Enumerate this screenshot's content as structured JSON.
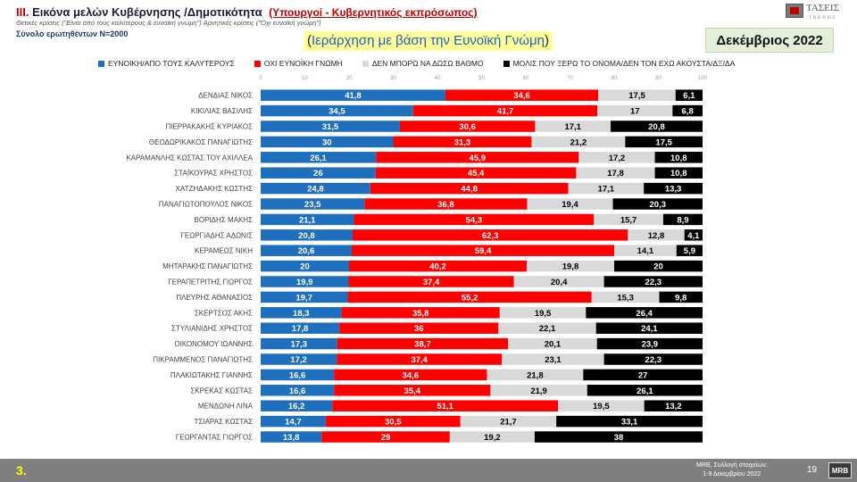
{
  "header": {
    "section_number": "III.",
    "title": "Εικόνα μελών Κυβέρνησης /Δημοτικότητα",
    "subtitle": "(Υπουργοί - Κυβερνητικός εκπρόσωπος)",
    "note": "Θετικές κρίσεις (\"Είναι από τους καλύτερους & ευνοϊκή γνώμη\") Αρνητικές κρίσεις (\"Όχι ευνοϊκή γνώμη\")",
    "sample": "Σύνολο ερωτηθέντων N=2000",
    "ranking": "Ιεράρχηση με βάση την Ευνοϊκή Γνώμη",
    "date": "Δεκέμβριος 2022",
    "logo_text": "ΤΑΣΕΙΣ",
    "logo_sub": "TRENDS"
  },
  "footer": {
    "slide_number": "3.",
    "source_line1": "MRB, Συλλογή στοιχείων:",
    "source_line2": "1-9 Δεκεμβρίου 2022",
    "page": "19",
    "logo": "MRB"
  },
  "colors": {
    "favorable": "#1f6fbf",
    "unfavorable": "#ff0000",
    "no_answer": "#d9d9d9",
    "unknown": "#000000"
  },
  "legend": [
    {
      "label": "ΕΥΝΟΙΚΗ/ΑΠΟ ΤΟΥΣ ΚΑΛΥΤΕΡΟΥΣ",
      "color": "#1f6fbf"
    },
    {
      "label": "ΟΧΙ ΕΥΝΟΙΚΗ ΓΝΩΜΗ",
      "color": "#ff0000"
    },
    {
      "label": "ΔΕΝ ΜΠΟΡΩ ΝΑ ΔΩΣΩ ΒΑΘΜΟ",
      "color": "#d9d9d9"
    },
    {
      "label": "ΜΟΛΙΣ ΠΟΥ ΞΕΡΩ ΤΟ ΟΝΟΜΑ/ΔΕΝ ΤΟΝ ΕΧΩ ΑΚΟΥΣΤΑ/ΔΞ/ΔΑ",
      "color": "#000000"
    }
  ],
  "chart_data": {
    "type": "bar",
    "orientation": "horizontal",
    "stacked": true,
    "xlim": [
      0,
      100
    ],
    "xticks": [
      0,
      10,
      20,
      30,
      40,
      50,
      60,
      70,
      80,
      90,
      100
    ],
    "categories": [
      "ΔΕΝΔΙΑΣ ΝΙΚΟΣ",
      "ΚΙΚΙΛΙΑΣ ΒΑΣΙΛΗΣ",
      "ΠΙΕΡΡΑΚΑΚΗΣ ΚΥΡΙΑΚΟΣ",
      "ΘΕΟΔΩΡΙΚΑΚΟΣ ΠΑΝΑΓΙΩΤΗΣ",
      "ΚΑΡΑΜΑΝΛΗΣ ΚΩΣΤΑΣ ΤΟΥ ΑΧΙΛΛΕΑ",
      "ΣΤΑΪΚΟΥΡΑΣ ΧΡΗΣΤΟΣ",
      "ΧΑΤΖΗΔΑΚΗΣ ΚΩΣΤΗΣ",
      "ΠΑΝΑΓΙΩΤΟΠΟΥΛΟΣ ΝΙΚΟΣ",
      "ΒΟΡΙΔΗΣ ΜΑΚΗΣ",
      "ΓΕΩΡΓΙΑΔΗΣ ΑΔΩΝΙΣ",
      "ΚΕΡΑΜΕΩΣ ΝΙΚΗ",
      "ΜΗΤΑΡΑΚΗΣ ΠΑΝΑΓΙΩΤΗΣ",
      "ΓΕΡΑΠΕΤΡΙΤΗΣ ΓΙΩΡΓΟΣ",
      "ΠΛΕΥΡΗΣ ΑΘΑΝΑΣΙΟΣ",
      "ΣΚΕΡΤΣΟΣ ΑΚΗΣ",
      "ΣΤΥΛΙΑΝΙΔΗΣ ΧΡΗΣΤΟΣ",
      "ΟΙΚΟΝΟΜΟΥ ΙΩΑΝΝΗΣ",
      "ΠΙΚΡΑΜΜΕΝΟΣ ΠΑΝΑΓΙΩΤΗΣ",
      "ΠΛΑΚΙΩΤΑΚΗΣ ΓΙΑΝΝΗΣ",
      "ΣΚΡΕΚΑΣ ΚΩΣΤΑΣ",
      "ΜΕΝΔΩΝΗ ΛΙΝΑ",
      "ΤΣΙΑΡΑΣ ΚΩΣΤΑΣ",
      "ΓΕΩΡΓΑΝΤΑΣ ΓΙΩΡΓΟΣ"
    ],
    "series": [
      {
        "name": "ΕΥΝΟΙΚΗ/ΑΠΟ ΤΟΥΣ ΚΑΛΥΤΕΡΟΥΣ",
        "color": "#1f6fbf",
        "label_color": "#ffffff",
        "values": [
          41.8,
          34.5,
          31.5,
          30,
          26.1,
          26,
          24.8,
          23.5,
          21.1,
          20.8,
          20.6,
          20,
          19.9,
          19.7,
          18.3,
          17.8,
          17.3,
          17.2,
          16.6,
          16.6,
          16.2,
          14.7,
          13.8
        ],
        "labels": [
          "41,8",
          "34,5",
          "31,5",
          "30",
          "26,1",
          "26",
          "24,8",
          "23,5",
          "21,1",
          "20,8",
          "20,6",
          "20",
          "19,9",
          "19,7",
          "18,3",
          "17,8",
          "17,3",
          "17,2",
          "16,6",
          "16,6",
          "16,2",
          "14,7",
          "13,8"
        ]
      },
      {
        "name": "ΟΧΙ ΕΥΝΟΙΚΗ ΓΝΩΜΗ",
        "color": "#ff0000",
        "label_color": "#ffffff",
        "values": [
          34.6,
          41.7,
          30.6,
          31.3,
          45.9,
          45.4,
          44.8,
          36.8,
          54.3,
          62.3,
          59.4,
          40.2,
          37.4,
          55.2,
          35.8,
          36,
          38.7,
          37.4,
          34.6,
          35.4,
          51.1,
          30.5,
          29
        ],
        "labels": [
          "34,6",
          "41,7",
          "30,6",
          "31,3",
          "45,9",
          "45,4",
          "44,8",
          "36,8",
          "54,3",
          "62,3",
          "59,4",
          "40,2",
          "37,4",
          "55,2",
          "35,8",
          "36",
          "38,7",
          "37,4",
          "34,6",
          "35,4",
          "51,1",
          "30,5",
          "29"
        ]
      },
      {
        "name": "ΔΕΝ ΜΠΟΡΩ ΝΑ ΔΩΣΩ ΒΑΘΜΟ",
        "color": "#d9d9d9",
        "label_color": "#000000",
        "values": [
          17.5,
          17,
          17.1,
          21.2,
          17.2,
          17.8,
          17.1,
          19.4,
          15.7,
          12.8,
          14.1,
          19.8,
          20.4,
          15.3,
          19.5,
          22.1,
          20.1,
          23.1,
          21.8,
          21.9,
          19.5,
          21.7,
          19.2
        ],
        "labels": [
          "17,5",
          "17",
          "17,1",
          "21,2",
          "17,2",
          "17,8",
          "17,1",
          "19,4",
          "15,7",
          "12,8",
          "14,1",
          "19,8",
          "20,4",
          "15,3",
          "19,5",
          "22,1",
          "20,1",
          "23,1",
          "21,8",
          "21,9",
          "19,5",
          "21,7",
          "19,2"
        ]
      },
      {
        "name": "ΜΟΛΙΣ ΠΟΥ ΞΕΡΩ ΤΟ ΟΝΟΜΑ/ΔΕΝ ΤΟΝ ΕΧΩ ΑΚΟΥΣΤΑ/ΔΞ/ΔΑ",
        "color": "#000000",
        "label_color": "#ffffff",
        "values": [
          6.1,
          6.8,
          20.8,
          17.5,
          10.8,
          10.8,
          13.3,
          20.3,
          8.9,
          4.1,
          5.9,
          20,
          22.3,
          9.8,
          26.4,
          24.1,
          23.9,
          22.3,
          27,
          26.1,
          13.2,
          33.1,
          38
        ],
        "labels": [
          "6,1",
          "6,8",
          "20,8",
          "17,5",
          "10,8",
          "10,8",
          "13,3",
          "20,3",
          "8,9",
          "4,1",
          "5,9",
          "20",
          "22,3",
          "9,8",
          "26,4",
          "24,1",
          "23,9",
          "22,3",
          "27",
          "26,1",
          "13,2",
          "33,1",
          "38"
        ]
      }
    ]
  }
}
